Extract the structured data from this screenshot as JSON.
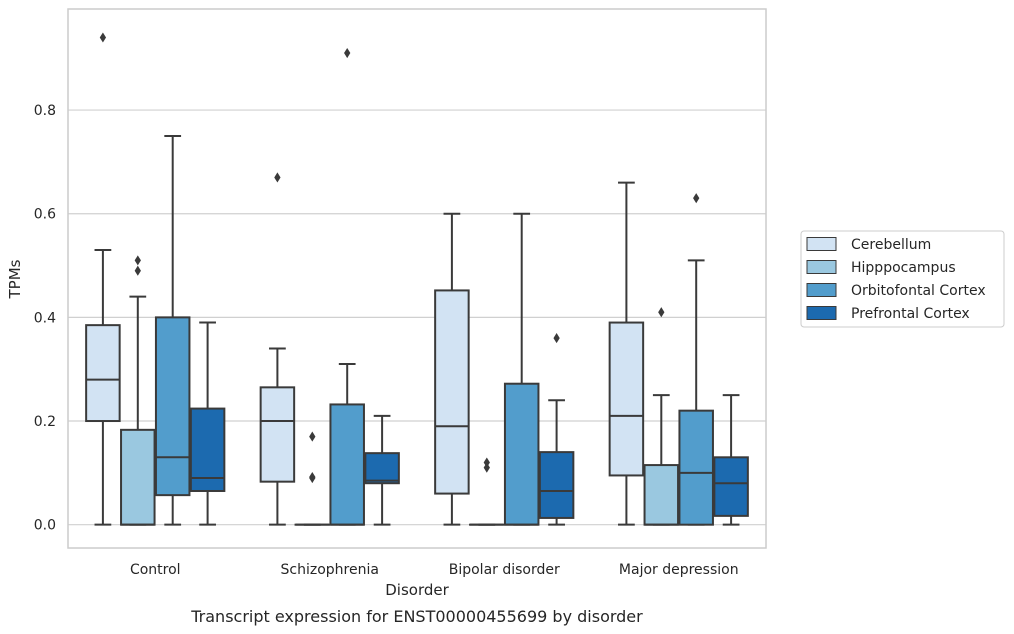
{
  "chart_data": {
    "type": "box",
    "caption": "Transcript expression for ENST00000455699 by disorder",
    "xlabel": "Disorder",
    "ylabel": "TPMs",
    "ylim": [
      -0.045,
      0.995
    ],
    "yticks": [
      0.0,
      0.2,
      0.4,
      0.6,
      0.8
    ],
    "ytick_labels": [
      "0.0",
      "0.2",
      "0.4",
      "0.6",
      "0.8"
    ],
    "grid": "horizontal",
    "legend_position": "right",
    "categories": [
      "Control",
      "Schizophrenia",
      "Bipolar disorder",
      "Major depression"
    ],
    "series": [
      {
        "name": "Cerebellum",
        "color": "#d2e3f3",
        "boxes": [
          {
            "whislo": 0.0,
            "q1": 0.2,
            "med": 0.28,
            "q3": 0.385,
            "whishi": 0.53,
            "fliers": [
              0.94
            ]
          },
          {
            "whislo": 0.0,
            "q1": 0.083,
            "med": 0.2,
            "q3": 0.265,
            "whishi": 0.34,
            "fliers": [
              0.67
            ]
          },
          {
            "whislo": 0.0,
            "q1": 0.06,
            "med": 0.19,
            "q3": 0.452,
            "whishi": 0.6,
            "fliers": []
          },
          {
            "whislo": 0.0,
            "q1": 0.095,
            "med": 0.21,
            "q3": 0.39,
            "whishi": 0.66,
            "fliers": []
          }
        ]
      },
      {
        "name": "Hipppocampus",
        "color": "#9ac8e0",
        "boxes": [
          {
            "whislo": 0.0,
            "q1": 0.0,
            "med": 0.0,
            "q3": 0.183,
            "whishi": 0.44,
            "fliers": [
              0.49,
              0.51
            ]
          },
          {
            "whislo": 0.0,
            "q1": 0.0,
            "med": 0.0,
            "q3": 0.0,
            "whishi": 0.0,
            "fliers": [
              0.09,
              0.092,
              0.17
            ]
          },
          {
            "whislo": 0.0,
            "q1": 0.0,
            "med": 0.0,
            "q3": 0.0,
            "whishi": 0.0,
            "fliers": [
              0.11,
              0.12
            ]
          },
          {
            "whislo": 0.0,
            "q1": 0.0,
            "med": 0.0,
            "q3": 0.115,
            "whishi": 0.25,
            "fliers": [
              0.41
            ]
          }
        ]
      },
      {
        "name": "Orbitofontal Cortex",
        "color": "#529dcc",
        "boxes": [
          {
            "whislo": 0.0,
            "q1": 0.057,
            "med": 0.13,
            "q3": 0.4,
            "whishi": 0.75,
            "fliers": []
          },
          {
            "whislo": 0.0,
            "q1": 0.0,
            "med": 0.0,
            "q3": 0.232,
            "whishi": 0.31,
            "fliers": [
              0.91
            ]
          },
          {
            "whislo": 0.0,
            "q1": 0.0,
            "med": 0.0,
            "q3": 0.272,
            "whishi": 0.6,
            "fliers": []
          },
          {
            "whislo": 0.0,
            "q1": 0.0,
            "med": 0.1,
            "q3": 0.22,
            "whishi": 0.51,
            "fliers": [
              0.63
            ]
          }
        ]
      },
      {
        "name": "Prefrontal Cortex",
        "color": "#1c6aaf",
        "boxes": [
          {
            "whislo": 0.0,
            "q1": 0.065,
            "med": 0.09,
            "q3": 0.224,
            "whishi": 0.39,
            "fliers": []
          },
          {
            "whislo": 0.0,
            "q1": 0.08,
            "med": 0.085,
            "q3": 0.138,
            "whishi": 0.21,
            "fliers": []
          },
          {
            "whislo": 0.0,
            "q1": 0.013,
            "med": 0.065,
            "q3": 0.14,
            "whishi": 0.24,
            "fliers": [
              0.36
            ]
          },
          {
            "whislo": 0.0,
            "q1": 0.017,
            "med": 0.08,
            "q3": 0.13,
            "whishi": 0.25,
            "fliers": []
          }
        ]
      }
    ]
  }
}
